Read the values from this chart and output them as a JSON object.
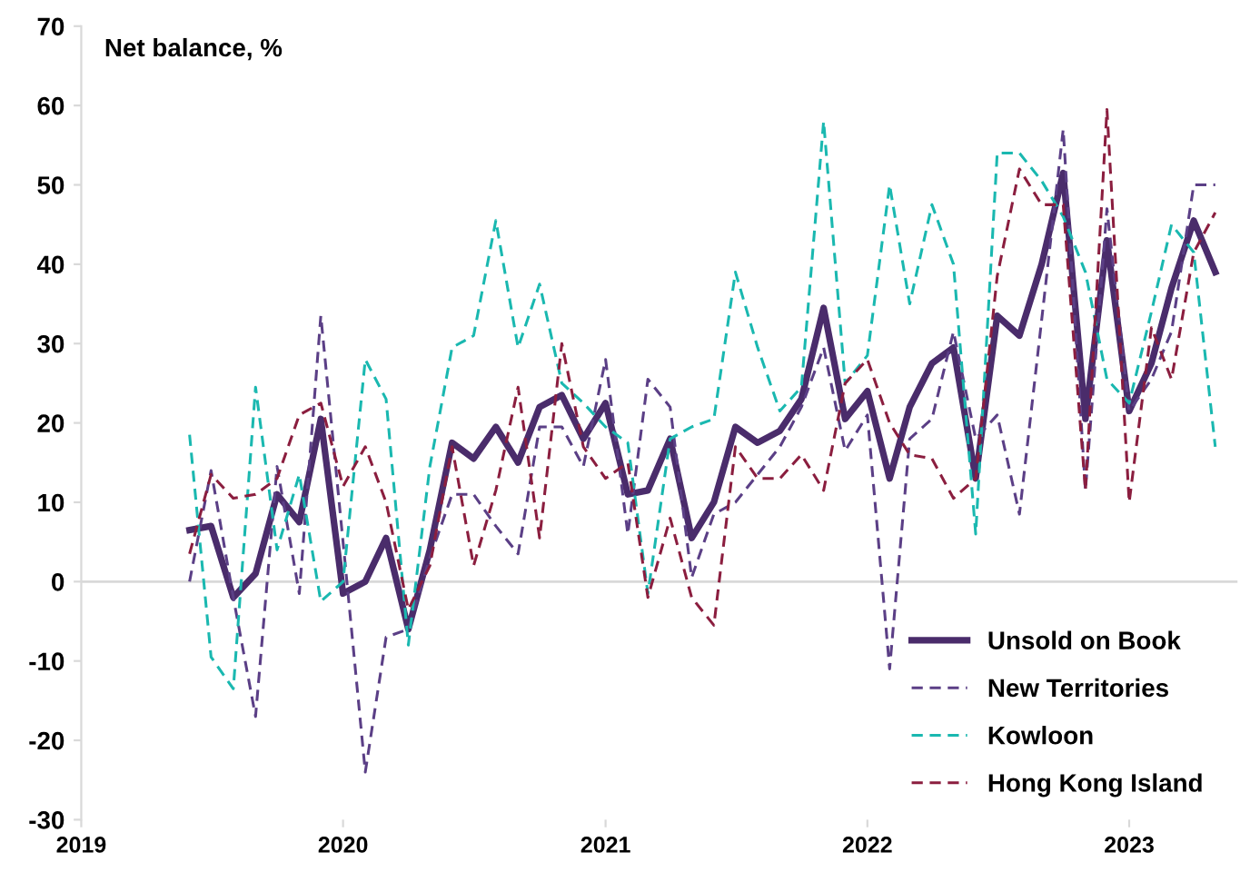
{
  "chart_data": {
    "type": "line",
    "ylabel": "Net balance, %",
    "x": [
      "2019-06",
      "2019-07",
      "2019-08",
      "2019-09",
      "2019-10",
      "2019-11",
      "2019-12",
      "2020-01",
      "2020-02",
      "2020-03",
      "2020-04",
      "2020-05",
      "2020-06",
      "2020-07",
      "2020-08",
      "2020-09",
      "2020-10",
      "2020-11",
      "2020-12",
      "2021-01",
      "2021-02",
      "2021-03",
      "2021-04",
      "2021-05",
      "2021-06",
      "2021-07",
      "2021-08",
      "2021-09",
      "2021-10",
      "2021-11",
      "2021-12",
      "2022-01",
      "2022-02",
      "2022-03",
      "2022-04",
      "2022-05",
      "2022-06",
      "2022-07",
      "2022-08",
      "2022-09",
      "2022-10",
      "2022-11",
      "2022-12",
      "2023-01",
      "2023-02",
      "2023-03",
      "2023-04",
      "2023-05"
    ],
    "series": [
      {
        "name": "Unsold on Book",
        "color": "#4a2c6b",
        "line_style": "solid",
        "values": [
          6.5,
          7,
          -2,
          1,
          11,
          7.5,
          20.5,
          -1.5,
          0,
          5.5,
          -6,
          4,
          17.5,
          15.5,
          19.5,
          15,
          22,
          23.5,
          18,
          22.5,
          11,
          11.5,
          18,
          5.5,
          10,
          19.5,
          17.5,
          19,
          23,
          34.5,
          20.5,
          24,
          13,
          22,
          27.5,
          29.5,
          13,
          33.5,
          31,
          40,
          51.5,
          20.5,
          43,
          21.5,
          27.5,
          37,
          45.5,
          39
        ]
      },
      {
        "name": "New Territories",
        "color": "#5b3f86",
        "line_style": "dashed",
        "values": [
          0,
          14,
          -2,
          -17,
          14.5,
          -1.5,
          33.5,
          5,
          -24,
          -7,
          -6,
          3,
          11,
          11,
          7,
          3.5,
          19.5,
          19.5,
          14.5,
          28,
          6,
          25.5,
          22,
          0.5,
          8.5,
          10,
          13.5,
          17,
          22,
          29.5,
          16.5,
          21,
          -11,
          18,
          20.5,
          31.5,
          18,
          21,
          8.5,
          33,
          57,
          11.5,
          47,
          21.5,
          25.5,
          31.5,
          50,
          50
        ]
      },
      {
        "name": "Kowloon",
        "color": "#1ab8b0",
        "line_style": "dashed",
        "values": [
          18.5,
          -9.5,
          -13.5,
          24.5,
          4,
          13.5,
          -2.5,
          0,
          28,
          23,
          -8,
          14.5,
          29.5,
          31,
          45.5,
          29.5,
          37.5,
          25,
          22.5,
          19.5,
          17.5,
          -1.5,
          18,
          19.5,
          20.5,
          39,
          29.5,
          21.5,
          24.5,
          58,
          25,
          28.5,
          50,
          35,
          47.5,
          40,
          6,
          54,
          54,
          50.5,
          46,
          39,
          25.5,
          22.5,
          34,
          45,
          41.5,
          17
        ]
      },
      {
        "name": "Hong Kong Island",
        "color": "#8b1e3f",
        "line_style": "dashed",
        "values": [
          3.5,
          13.5,
          10.5,
          11,
          13,
          21,
          22.5,
          12,
          17,
          10,
          -3.5,
          2,
          17,
          2,
          11.5,
          24.5,
          5.5,
          30,
          17,
          13,
          15,
          -2,
          8,
          -2,
          -5.5,
          17,
          13,
          13,
          16,
          11.5,
          25,
          28,
          20,
          16,
          15.5,
          10.5,
          13,
          38.5,
          52,
          47.5,
          47.5,
          11.5,
          59.5,
          10,
          32,
          25.5,
          41.5,
          46.5
        ]
      }
    ],
    "xlim": [
      "2019-01",
      "2023-06"
    ],
    "xticks": [
      {
        "value": "2019-01",
        "label": "2019"
      },
      {
        "value": "2020-01",
        "label": "2020"
      },
      {
        "value": "2021-01",
        "label": "2021"
      },
      {
        "value": "2022-01",
        "label": "2022"
      },
      {
        "value": "2023-01",
        "label": "2023"
      }
    ],
    "ylim": [
      -30,
      70
    ],
    "yticks": [
      -30,
      -20,
      -10,
      0,
      10,
      20,
      30,
      40,
      50,
      60,
      70
    ],
    "ref_lines": [
      {
        "axis": "y",
        "value": 0,
        "color": "#d9d9d9"
      }
    ],
    "grid": false,
    "legend": "bottom right",
    "marker": "none"
  }
}
